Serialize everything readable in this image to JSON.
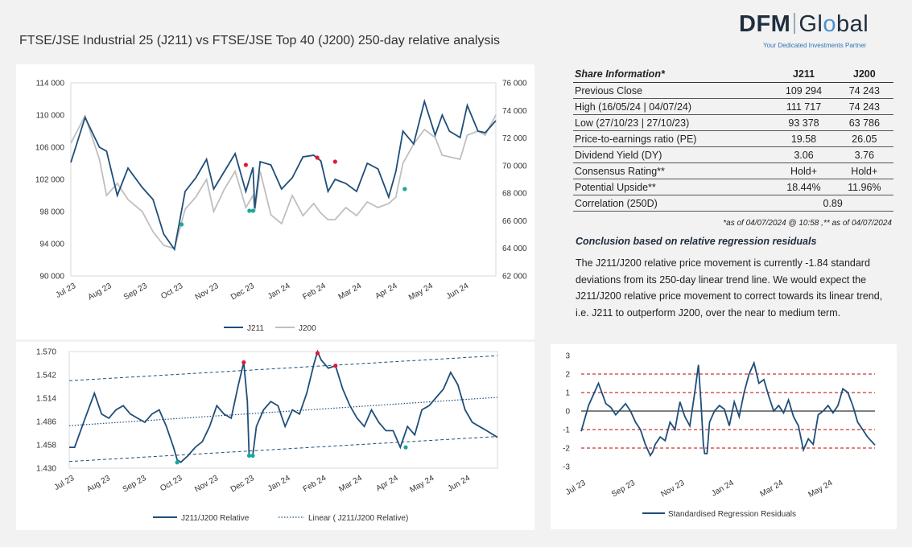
{
  "page": {
    "title": "FTSE/JSE Industrial 25 (J211) vs FTSE/JSE Top 40 (J200) 250-day relative analysis"
  },
  "logo": {
    "part1": "DFM",
    "part2a": "Gl",
    "part2b": "o",
    "part2c": "bal",
    "tagline": "Your Dedicated Investments Partner"
  },
  "share_info": {
    "header": {
      "label": "Share Information*",
      "col1": "J211",
      "col2": "J200"
    },
    "rows": [
      {
        "label": "Previous Close",
        "j211": "109 294",
        "j200": "74 243"
      },
      {
        "label": "High (16/05/24 | 04/07/24)",
        "j211": "111 717",
        "j200": "74 243"
      },
      {
        "label": "Low (27/10/23 | 27/10/23)",
        "j211": "93 378",
        "j200": "63 786"
      },
      {
        "label": "Price-to-earnings ratio (PE)",
        "j211": "19.58",
        "j200": "26.05"
      },
      {
        "label": "Dividend Yield (DY)",
        "j211": "3.06",
        "j200": "3.76"
      },
      {
        "label": "Consensus Rating**",
        "j211": "Hold+",
        "j200": "Hold+"
      },
      {
        "label": "Potential Upside**",
        "j211": "18.44%",
        "j200": "11.96%"
      }
    ],
    "correlation": {
      "label": "Correlation (250D)",
      "value": "0.89"
    },
    "note": "*as of 04/07/2024 @ 10:58 ,** as of 04/07/2024"
  },
  "conclusion": {
    "title": "Conclusion based on relative regression residuals",
    "text": "The J211/J200 relative price movement is currently -1.84 standard deviations from its 250-day linear trend line. We would expect the J211/J200 relative price movement to correct towards its linear trend, i.e. J211 to outperform J200, over the near to medium term."
  },
  "colors": {
    "j211": "#1f4e79",
    "j200": "#bfbfbf",
    "high_marker": "#e0193b",
    "low_marker": "#17a99b",
    "sd_line": "#c00000"
  },
  "chart_data": [
    {
      "type": "line",
      "xticks": [
        "Jul 23",
        "Aug 23",
        "Sep 23",
        "Oct 23",
        "Nov 23",
        "Dec 23",
        "Jan 24",
        "Feb 24",
        "Mar 24",
        "Apr 24",
        "May 24",
        "Jun 24"
      ],
      "y_left": {
        "min": 90000,
        "max": 114000,
        "ticks": [
          "90 000",
          "94 000",
          "98 000",
          "102 000",
          "106 000",
          "110 000",
          "114 000"
        ]
      },
      "y_right": {
        "min": 62000,
        "max": 76000,
        "ticks": [
          "62 000",
          "64 000",
          "66 000",
          "68 000",
          "70 000",
          "72 000",
          "74 000",
          "76 000"
        ]
      },
      "legend": [
        "J211",
        "J200"
      ],
      "series": [
        {
          "name": "J211",
          "axis": "left",
          "x": [
            0,
            0.4,
            0.8,
            1.0,
            1.3,
            1.6,
            2.0,
            2.3,
            2.6,
            2.9,
            3.2,
            3.5,
            3.8,
            4.0,
            4.3,
            4.6,
            4.9,
            5.1,
            5.15,
            5.3,
            5.6,
            5.9,
            6.2,
            6.5,
            6.8,
            7.0,
            7.2,
            7.4,
            7.7,
            8.0,
            8.3,
            8.6,
            8.9,
            9.1,
            9.3,
            9.6,
            9.9,
            10.2,
            10.4,
            10.6,
            10.9,
            11.1,
            11.4,
            11.6,
            11.9
          ],
          "y": [
            104100,
            109700,
            106000,
            105500,
            100000,
            103400,
            101000,
            99500,
            95200,
            93300,
            100500,
            102200,
            104500,
            100800,
            103000,
            105200,
            100500,
            103500,
            98400,
            104200,
            103800,
            100800,
            102200,
            104800,
            105000,
            104300,
            100500,
            102000,
            101500,
            100500,
            104000,
            103300,
            99800,
            103000,
            108000,
            106400,
            111700,
            107500,
            110000,
            108000,
            107200,
            111200,
            108000,
            107800,
            109300
          ]
        },
        {
          "name": "J200",
          "axis": "left",
          "x": [
            0,
            0.4,
            0.8,
            1.0,
            1.3,
            1.6,
            2.0,
            2.3,
            2.6,
            2.9,
            3.2,
            3.5,
            3.8,
            4.0,
            4.3,
            4.6,
            4.9,
            5.1,
            5.15,
            5.3,
            5.6,
            5.9,
            6.2,
            6.5,
            6.8,
            7.0,
            7.2,
            7.4,
            7.7,
            8.0,
            8.3,
            8.6,
            8.9,
            9.1,
            9.3,
            9.6,
            9.9,
            10.2,
            10.4,
            10.6,
            10.9,
            11.1,
            11.4,
            11.6,
            11.9
          ],
          "y": [
            106500,
            109900,
            104500,
            100000,
            101500,
            99500,
            98000,
            95500,
            93800,
            93400,
            98300,
            99800,
            102000,
            98000,
            100800,
            103000,
            98500,
            100000,
            98000,
            103000,
            97600,
            96500,
            100000,
            97500,
            99000,
            97800,
            97000,
            97000,
            98500,
            97500,
            99200,
            98500,
            99000,
            99800,
            104000,
            106400,
            108200,
            107200,
            105000,
            104800,
            104500,
            107500,
            108000,
            107500,
            110000
          ]
        }
      ],
      "highs": [
        {
          "x": 4.9,
          "y": 103800
        },
        {
          "x": 6.9,
          "y": 104700
        },
        {
          "x": 7.4,
          "y": 104200
        }
      ],
      "lows": [
        {
          "x": 3.1,
          "y": 96400
        },
        {
          "x": 5.0,
          "y": 98100
        },
        {
          "x": 5.1,
          "y": 98100
        },
        {
          "x": 9.35,
          "y": 100800
        }
      ]
    },
    {
      "type": "line",
      "xticks": [
        "Jul 23",
        "Aug 23",
        "Sep 23",
        "Oct 23",
        "Nov 23",
        "Dec 23",
        "Jan 24",
        "Feb 24",
        "Mar 24",
        "Apr 24",
        "May 24",
        "Jun 24"
      ],
      "y": {
        "min": 1.43,
        "max": 1.57,
        "ticks": [
          "1.430",
          "1.458",
          "1.486",
          "1.514",
          "1.542",
          "1.570"
        ]
      },
      "legend": [
        "J211/J200 Relative",
        "Linear ( J211/J200 Relative)"
      ],
      "series": [
        {
          "name": "J211/J200 Relative",
          "x": [
            0,
            0.15,
            0.4,
            0.7,
            0.9,
            1.1,
            1.3,
            1.5,
            1.7,
            1.9,
            2.1,
            2.3,
            2.5,
            2.7,
            2.9,
            3.0,
            3.1,
            3.3,
            3.5,
            3.7,
            3.9,
            4.1,
            4.3,
            4.5,
            4.7,
            4.85,
            4.95,
            5.0,
            5.05,
            5.1,
            5.2,
            5.4,
            5.6,
            5.8,
            6.0,
            6.2,
            6.4,
            6.6,
            6.8,
            6.9,
            7.0,
            7.2,
            7.4,
            7.6,
            7.8,
            8.0,
            8.2,
            8.4,
            8.6,
            8.8,
            9.0,
            9.2,
            9.4,
            9.6,
            9.8,
            10.0,
            10.2,
            10.4,
            10.6,
            10.8,
            11.0,
            11.2,
            11.4,
            11.6,
            11.9
          ],
          "y": [
            1.455,
            1.455,
            1.485,
            1.52,
            1.495,
            1.49,
            1.5,
            1.505,
            1.495,
            1.49,
            1.485,
            1.495,
            1.5,
            1.48,
            1.455,
            1.44,
            1.437,
            1.445,
            1.455,
            1.462,
            1.48,
            1.505,
            1.495,
            1.49,
            1.53,
            1.557,
            1.51,
            1.445,
            1.445,
            1.445,
            1.48,
            1.5,
            1.51,
            1.505,
            1.48,
            1.5,
            1.495,
            1.52,
            1.555,
            1.57,
            1.56,
            1.55,
            1.553,
            1.525,
            1.505,
            1.49,
            1.48,
            1.5,
            1.485,
            1.475,
            1.475,
            1.455,
            1.48,
            1.47,
            1.5,
            1.505,
            1.515,
            1.525,
            1.545,
            1.53,
            1.5,
            1.485,
            1.48,
            1.475,
            1.467
          ]
        },
        {
          "name": "Linear ( J211/J200 Relative)",
          "x": [
            0,
            11.9
          ],
          "y": [
            1.481,
            1.515
          ]
        }
      ],
      "bands": [
        {
          "x": [
            0,
            11.9
          ],
          "y": [
            1.535,
            1.565
          ]
        },
        {
          "x": [
            0,
            11.9
          ],
          "y": [
            1.438,
            1.468
          ]
        }
      ],
      "highs": [
        {
          "x": 4.85,
          "y": 1.557
        },
        {
          "x": 6.9,
          "y": 1.568
        },
        {
          "x": 7.4,
          "y": 1.553
        }
      ],
      "lows": [
        {
          "x": 3.0,
          "y": 1.437
        },
        {
          "x": 5.0,
          "y": 1.445
        },
        {
          "x": 5.1,
          "y": 1.445
        },
        {
          "x": 9.35,
          "y": 1.455
        }
      ]
    },
    {
      "type": "line",
      "xticks": [
        "Jul 23",
        "Sep 23",
        "Nov 23",
        "Jan 24",
        "Mar 24",
        "May 24"
      ],
      "y": {
        "min": -3,
        "max": 3,
        "ticks": [
          "3",
          "2",
          "1",
          "0",
          "-1",
          "-2",
          "-3"
        ]
      },
      "reference_lines": [
        2,
        1,
        -1,
        -2
      ],
      "legend": [
        "Standardised Regression Residuals"
      ],
      "series": [
        {
          "name": "Standardised Regression Residuals",
          "x": [
            0,
            0.3,
            0.7,
            1.0,
            1.2,
            1.4,
            1.6,
            1.8,
            2.0,
            2.2,
            2.4,
            2.6,
            2.8,
            2.9,
            3.0,
            3.2,
            3.4,
            3.6,
            3.8,
            4.0,
            4.2,
            4.4,
            4.6,
            4.75,
            4.85,
            4.95,
            5.0,
            5.1,
            5.2,
            5.4,
            5.6,
            5.8,
            6.0,
            6.2,
            6.4,
            6.6,
            6.8,
            7.0,
            7.2,
            7.4,
            7.6,
            7.8,
            8.0,
            8.2,
            8.4,
            8.6,
            8.8,
            9.0,
            9.2,
            9.4,
            9.6,
            9.8,
            10.0,
            10.2,
            10.4,
            10.6,
            10.8,
            11.0,
            11.2,
            11.4,
            11.6,
            11.9
          ],
          "y": [
            -1.1,
            0.3,
            1.5,
            0.4,
            0.2,
            -0.2,
            0.1,
            0.4,
            0.0,
            -0.6,
            -1.0,
            -1.8,
            -2.4,
            -2.2,
            -1.8,
            -1.4,
            -1.6,
            -0.6,
            -1.0,
            0.5,
            -0.3,
            -0.8,
            1.0,
            2.5,
            0.5,
            -1.8,
            -2.3,
            -2.3,
            -0.6,
            0.0,
            0.3,
            0.1,
            -0.8,
            0.5,
            -0.3,
            1.0,
            2.0,
            2.6,
            1.5,
            1.7,
            0.8,
            0.0,
            0.3,
            -0.1,
            0.6,
            -0.3,
            -0.8,
            -2.1,
            -1.5,
            -1.8,
            -0.2,
            0.0,
            0.3,
            -0.1,
            0.3,
            1.2,
            1.0,
            0.3,
            -0.6,
            -1.0,
            -1.4,
            -1.84
          ]
        }
      ]
    }
  ]
}
